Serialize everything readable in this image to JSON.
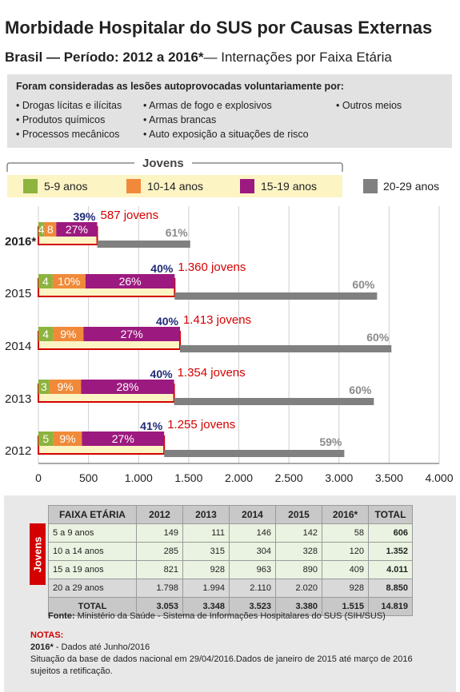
{
  "title": "Morbidade Hospitalar do SUS por Causas Externas",
  "subtitle": {
    "bold": "Brasil — Período: 2012 a 2016*",
    "rest": "— Internações por Faixa Etária"
  },
  "causes": {
    "heading": "Foram consideradas as lesões autoprovocadas voluntariamente por:",
    "items": [
      "• Drogas lícitas e ilícitas",
      "• Produtos químicos",
      "• Processos mecânicos",
      "• Armas de fogo e explosivos",
      "• Armas brancas",
      "• Auto exposição a situações de risco",
      "• Outros meios"
    ]
  },
  "legend": {
    "group_title": "Jovens",
    "items": [
      {
        "label": "5-9 anos",
        "color": "#8db43e"
      },
      {
        "label": "10-14 anos",
        "color": "#f08a3a"
      },
      {
        "label": "15-19 anos",
        "color": "#9c1a7f"
      },
      {
        "label": "20-29 anos",
        "color": "#808080"
      }
    ]
  },
  "chart_data": {
    "type": "bar",
    "orientation": "horizontal",
    "categories": [
      "2016*",
      "2015",
      "2014",
      "2013",
      "2012"
    ],
    "xlim": [
      0,
      4000
    ],
    "x_ticks": [
      "0",
      "500",
      "1.000",
      "1.500",
      "2.000",
      "2.500",
      "3.000",
      "3.500",
      "4.000"
    ],
    "x_tick_values": [
      0,
      500,
      1000,
      1500,
      2000,
      2500,
      3000,
      3500,
      4000
    ],
    "colors": {
      "5-9": "#8db43e",
      "10-14": "#f08a3a",
      "15-19": "#9c1a7f",
      "20-29": "#808080",
      "jovens_border": "#d40000",
      "jovens_label": "#d40000",
      "pct_jovens": "#1f2a78",
      "pct_adult": "#8a8a8a"
    },
    "series": [
      {
        "name": "5-9 anos",
        "values": [
          58,
          142,
          146,
          111,
          149
        ],
        "labels": [
          "4",
          "4",
          "4",
          "3",
          "5"
        ]
      },
      {
        "name": "10-14 anos",
        "values": [
          120,
          328,
          304,
          315,
          285
        ],
        "labels": [
          "8",
          "10%",
          "9%",
          "9%",
          "9%"
        ]
      },
      {
        "name": "15-19 anos",
        "values": [
          409,
          890,
          963,
          928,
          821
        ],
        "labels": [
          "27%",
          "26%",
          "27%",
          "28%",
          "27%"
        ]
      },
      {
        "name": "20-29 anos",
        "values": [
          928,
          2020,
          2110,
          1994,
          1798
        ],
        "labels": [
          "61%",
          "60%",
          "60%",
          "60%",
          "59%"
        ]
      }
    ],
    "totals": [
      1515,
      3380,
      3523,
      3348,
      3053
    ],
    "jovens_totals": [
      587,
      1360,
      1413,
      1354,
      1255
    ],
    "jovens_pct": [
      "39%",
      "40%",
      "40%",
      "40%",
      "41%"
    ],
    "jovens_labels": [
      "587 jovens",
      "1.360 jovens",
      "1.413 jovens",
      "1.354 jovens",
      "1.255 jovens"
    ]
  },
  "table": {
    "side_label": "Jovens",
    "headers": [
      "FAIXA ETÁRIA",
      "2012",
      "2013",
      "2014",
      "2015",
      "2016*",
      "TOTAL"
    ],
    "rows": [
      [
        "5 a 9 anos",
        "149",
        "111",
        "146",
        "142",
        "58",
        "606"
      ],
      [
        "10 a 14 anos",
        "285",
        "315",
        "304",
        "328",
        "120",
        "1.352"
      ],
      [
        "15 a 19 anos",
        "821",
        "928",
        "963",
        "890",
        "409",
        "4.011"
      ],
      [
        "20 a 29 anos",
        "1.798",
        "1.994",
        "2.110",
        "2.020",
        "928",
        "8.850"
      ],
      [
        "TOTAL",
        "3.053",
        "3.348",
        "3.523",
        "3.380",
        "1.515",
        "14.819"
      ]
    ]
  },
  "source": {
    "label": "Fonte:",
    "text": "Ministério da Saúde - Sistema de Informações Hospitalares do SUS (SIH/SUS)"
  },
  "notes": {
    "title": "NOTAS:",
    "n1_bold": "2016*",
    "n1_text": " - Dados até Junho/2016",
    "n2": "Situação da base de dados nacional em 29/04/2016.Dados de janeiro de 2015 até março de 2016 sujeitos a retificação."
  }
}
